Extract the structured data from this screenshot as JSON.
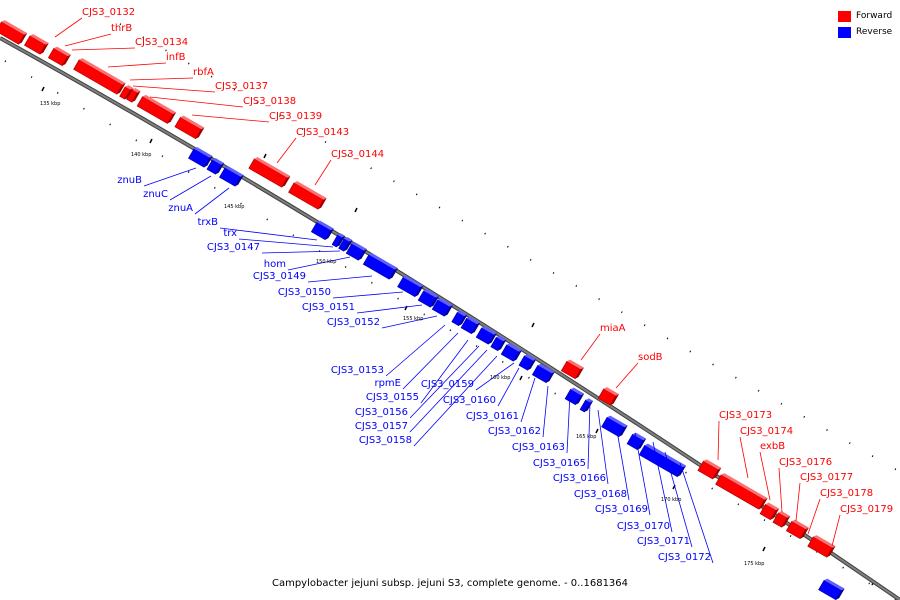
{
  "caption": "Campylobacter jejuni subsp. jejuni S3, complete genome. - 0..1681364",
  "legend": {
    "forward": {
      "label": "Forward",
      "color": "#ff0000"
    },
    "reverse": {
      "label": "Reverse",
      "color": "#0000ff"
    }
  },
  "colors": {
    "forward": "#ff0000",
    "reverse": "#0000ff",
    "backbone": "#808080",
    "ticks": "#000000"
  },
  "scale_labels": [
    "135 kbp",
    "140 kbp",
    "145 kbp",
    "150 kbp",
    "155 kbp",
    "160 kbp",
    "165 kbp",
    "170 kbp",
    "175 kbp"
  ],
  "forward_labels": [
    "CJS3_0132",
    "thrB",
    "CJS3_0134",
    "infB",
    "rbfA",
    "CJS3_0137",
    "CJS3_0138",
    "CJS3_0139",
    "CJS3_0143",
    "CJS3_0144",
    "miaA",
    "sodB",
    "CJS3_0173",
    "CJS3_0174",
    "exbB",
    "CJS3_0176",
    "CJS3_0177",
    "CJS3_0178",
    "CJS3_0179"
  ],
  "reverse_labels": [
    "znuB",
    "znuC",
    "znuA",
    "trxB",
    "trx",
    "CJS3_0147",
    "hom",
    "CJS3_0149",
    "CJS3_0150",
    "CJS3_0151",
    "CJS3_0152",
    "CJS3_0153",
    "rpmE",
    "CJS3_0155",
    "CJS3_0156",
    "CJS3_0157",
    "CJS3_0158",
    "CJS3_0159",
    "CJS3_0160",
    "CJS3_0161",
    "CJS3_0162",
    "CJS3_0163",
    "CJS3_0165",
    "CJS3_0166",
    "CJS3_0168",
    "CJS3_0169",
    "CJS3_0170",
    "CJS3_0171",
    "CJS3_0172"
  ]
}
